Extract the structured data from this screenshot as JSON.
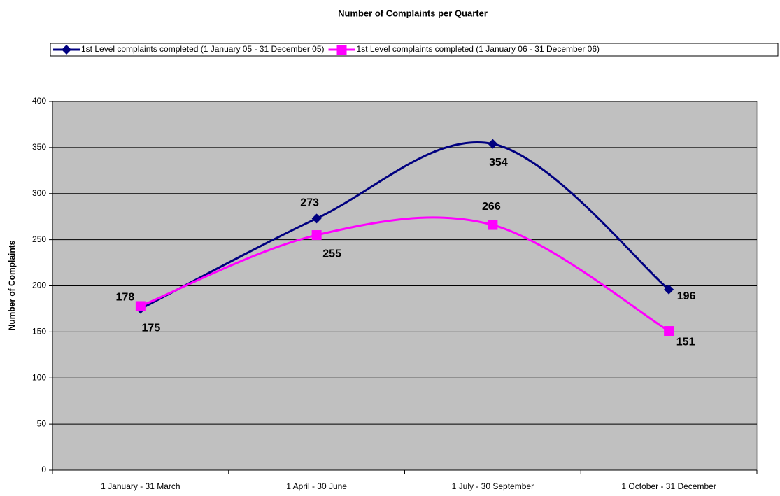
{
  "chart_data": {
    "type": "line",
    "title": "Number of Complaints per Quarter",
    "y_label": "Number of Complaints",
    "categories": [
      "1 January - 31 March",
      "1 April - 30 June",
      "1 July - 30 September",
      "1 October - 31 December"
    ],
    "series": [
      {
        "name": "1st Level complaints completed (1 January 05 - 31 December 05)",
        "color": "#000080",
        "marker": "diamond",
        "values": [
          175,
          273,
          354,
          196
        ]
      },
      {
        "name": "1st Level complaints completed (1 January 06 - 31 December 06)",
        "color": "#ff00ff",
        "marker": "square",
        "values": [
          178,
          255,
          266,
          151
        ]
      }
    ],
    "ylim": [
      0,
      400
    ],
    "yticks": [
      0,
      50,
      100,
      150,
      200,
      250,
      300,
      350,
      400
    ],
    "grid": true,
    "smooth": true,
    "legend": "top",
    "plot_background": "#c0c0c0"
  }
}
